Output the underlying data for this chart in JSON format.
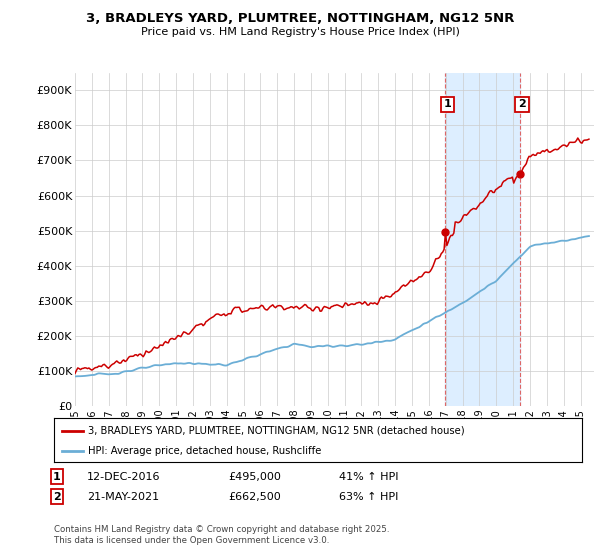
{
  "title": "3, BRADLEYS YARD, PLUMTREE, NOTTINGHAM, NG12 5NR",
  "subtitle": "Price paid vs. HM Land Registry's House Price Index (HPI)",
  "legend_line1": "3, BRADLEYS YARD, PLUMTREE, NOTTINGHAM, NG12 5NR (detached house)",
  "legend_line2": "HPI: Average price, detached house, Rushcliffe",
  "annotation1_date": "12-DEC-2016",
  "annotation1_price": "£495,000",
  "annotation1_hpi": "41% ↑ HPI",
  "annotation2_date": "21-MAY-2021",
  "annotation2_price": "£662,500",
  "annotation2_hpi": "63% ↑ HPI",
  "footer": "Contains HM Land Registry data © Crown copyright and database right 2025.\nThis data is licensed under the Open Government Licence v3.0.",
  "red_color": "#cc0000",
  "blue_color": "#6baed6",
  "shade_color": "#ddeeff",
  "dashed_color": "#dd6666",
  "ylim": [
    0,
    950000
  ],
  "yticks": [
    0,
    100000,
    200000,
    300000,
    400000,
    500000,
    600000,
    700000,
    800000,
    900000
  ],
  "ytick_labels": [
    "£0",
    "£100K",
    "£200K",
    "£300K",
    "£400K",
    "£500K",
    "£600K",
    "£700K",
    "£800K",
    "£900K"
  ],
  "sale1_x": 2016.95,
  "sale1_y": 495000,
  "sale2_x": 2021.38,
  "sale2_y": 662500,
  "xmin": 1995,
  "xmax": 2025.8
}
